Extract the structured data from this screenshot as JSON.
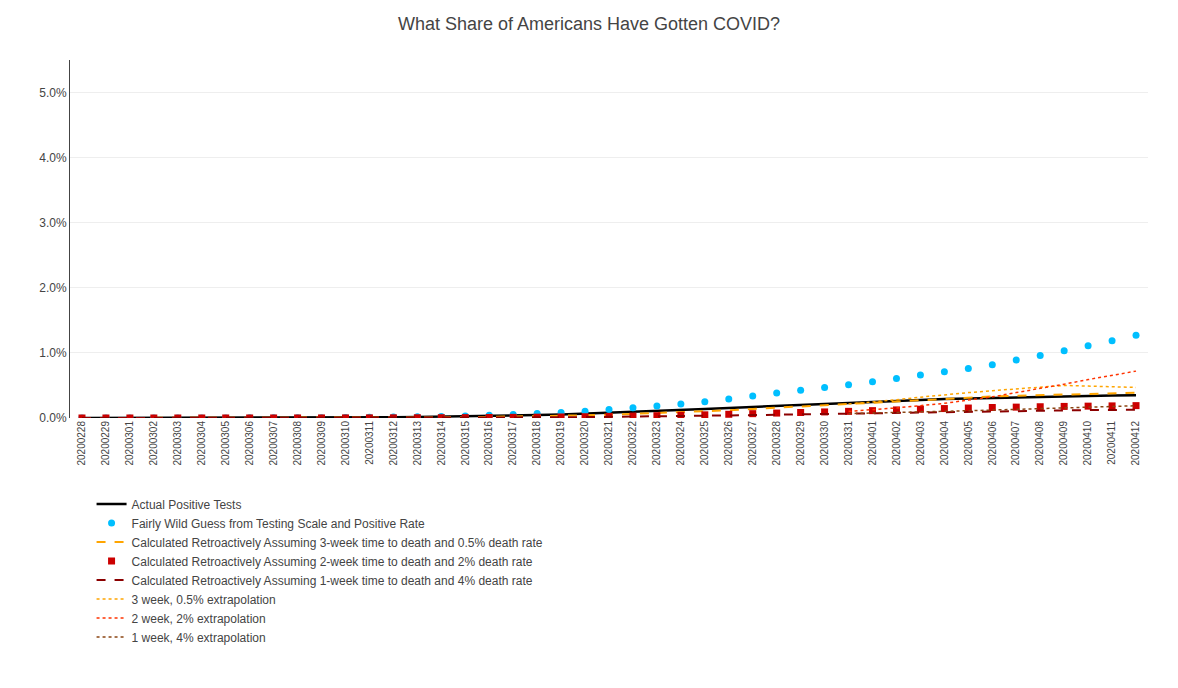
{
  "chart_data": {
    "type": "line",
    "title": "What Share of Americans Have Gotten COVID?",
    "categories": [
      "20200228",
      "20200229",
      "20200301",
      "20200302",
      "20200303",
      "20200304",
      "20200305",
      "20200306",
      "20200307",
      "20200308",
      "20200309",
      "20200310",
      "20200311",
      "20200312",
      "20200313",
      "20200314",
      "20200315",
      "20200316",
      "20200317",
      "20200318",
      "20200319",
      "20200320",
      "20200321",
      "20200322",
      "20200323",
      "20200324",
      "20200325",
      "20200326",
      "20200327",
      "20200328",
      "20200329",
      "20200330",
      "20200331",
      "20200401",
      "20200402",
      "20200403",
      "20200404",
      "20200405",
      "20200406",
      "20200407",
      "20200408",
      "20200409",
      "20200410",
      "20200411",
      "20200412"
    ],
    "series": [
      {
        "name": "Actual Positive Tests",
        "color": "#000000",
        "line_style": "solid",
        "marker": "none",
        "values": [
          2e-06,
          3e-06,
          5e-06,
          7e-06,
          9e-06,
          1.1e-05,
          1.5e-05,
          2.1e-05,
          2.8e-05,
          3.7e-05,
          4.7e-05,
          6.3e-05,
          8.3e-05,
          0.000117,
          0.00016,
          0.000198,
          0.000244,
          0.000311,
          0.000385,
          0.000467,
          0.000555,
          0.000673,
          0.0008,
          0.000958,
          0.00109,
          0.00122,
          0.001365,
          0.00154,
          0.00172,
          0.001895,
          0.00203,
          0.00216,
          0.00231,
          0.00248,
          0.00265,
          0.0028,
          0.00293,
          0.00301,
          0.0031,
          0.00317,
          0.00326,
          0.00334,
          0.00339,
          0.00344,
          0.00349
        ]
      },
      {
        "name": "Fairly Wild Guess from Testing Scale and Positive Rate",
        "color": "#00BFFF",
        "line_style": "none",
        "marker": "circle",
        "values": [
          2e-06,
          3e-06,
          5e-06,
          7e-06,
          1e-05,
          1.3e-05,
          1.8e-05,
          2.5e-05,
          3.3e-05,
          4.3e-05,
          5.6e-05,
          7.5e-05,
          0.0001,
          0.00014,
          0.00019,
          0.00024,
          0.00031,
          0.00041,
          0.00053,
          0.00068,
          0.00084,
          0.00105,
          0.00129,
          0.00158,
          0.00186,
          0.00216,
          0.0025,
          0.0029,
          0.00338,
          0.00385,
          0.00425,
          0.00468,
          0.0051,
          0.00555,
          0.00605,
          0.0066,
          0.0071,
          0.0076,
          0.0082,
          0.0089,
          0.0096,
          0.01035,
          0.0111,
          0.01185,
          0.0127
        ]
      },
      {
        "name": "Calculated Retroactively Assuming 3-week time to death and 0.5% death rate",
        "color": "#FFA500",
        "line_style": "dashed",
        "marker": "none",
        "values": [
          1e-06,
          1e-06,
          2e-06,
          3e-06,
          4e-06,
          5e-06,
          7e-06,
          1e-05,
          1.3e-05,
          1.7e-05,
          2.2e-05,
          3e-05,
          3.9e-05,
          5.5e-05,
          7.5e-05,
          9.5e-05,
          0.00012,
          0.00016,
          0.00021,
          0.000268,
          0.00033,
          0.00041,
          0.000505,
          0.00062,
          0.00074,
          0.00087,
          0.00101,
          0.00119,
          0.00139,
          0.00159,
          0.00177,
          0.00195,
          0.00214,
          0.00235,
          0.00258,
          0.0028,
          0.003,
          0.00315,
          0.0033,
          0.00342,
          0.00353,
          0.00364,
          0.00372,
          0.0038,
          0.00387
        ]
      },
      {
        "name": "Calculated Retroactively Assuming 2-week time to death and 2% death rate",
        "color": "#CC0000",
        "line_style": "none",
        "marker": "square",
        "values": [
          1e-06,
          1e-06,
          1e-06,
          2e-06,
          2e-06,
          3e-06,
          4e-06,
          5e-06,
          7e-06,
          9e-06,
          1.1e-05,
          1.5e-05,
          2e-05,
          2.8e-05,
          3.8e-05,
          4.7e-05,
          5.9e-05,
          7.7e-05,
          0.0001,
          0.000128,
          0.000158,
          0.000198,
          0.000243,
          0.0003,
          0.000357,
          0.000418,
          0.000487,
          0.000572,
          0.000665,
          0.000758,
          0.000843,
          0.000932,
          0.00102,
          0.00113,
          0.00124,
          0.00135,
          0.00145,
          0.00153,
          0.00161,
          0.00167,
          0.00173,
          0.00178,
          0.00182,
          0.00186,
          0.0019
        ]
      },
      {
        "name": "Calculated Retroactively Assuming 1-week time to death and 4% death rate",
        "color": "#8B0000",
        "line_style": "dashed",
        "marker": "none",
        "values": [
          1e-06,
          1e-06,
          1e-06,
          1e-06,
          2e-06,
          2e-06,
          3e-06,
          4e-06,
          5e-06,
          6e-06,
          8e-06,
          1e-05,
          1.4e-05,
          1.9e-05,
          2.6e-05,
          3.2e-05,
          4e-05,
          5.2e-05,
          6.7e-05,
          8.6e-05,
          0.000106,
          0.000133,
          0.000163,
          0.0002,
          0.000238,
          0.000279,
          0.000325,
          0.000381,
          0.000444,
          0.000505,
          0.000562,
          0.000621,
          0.00068,
          0.000753,
          0.000827,
          0.0009,
          0.000967,
          0.00102,
          0.001073,
          0.001113,
          0.001153,
          0.001187,
          0.001213,
          0.00124,
          0.001267
        ]
      },
      {
        "name": "3 week, 0.5% extrapolation",
        "color": "#FFA500",
        "line_style": "dotted",
        "marker": "none",
        "values": [
          null,
          null,
          null,
          null,
          null,
          null,
          null,
          null,
          null,
          null,
          null,
          null,
          null,
          null,
          null,
          null,
          null,
          null,
          null,
          null,
          null,
          null,
          null,
          null,
          null,
          null,
          null,
          null,
          null,
          null,
          null,
          null,
          0.00214,
          0.00245,
          0.00281,
          0.0032,
          0.0036,
          0.0039,
          0.0042,
          0.0045,
          0.0048,
          0.005,
          0.0049,
          0.0048,
          0.0047
        ]
      },
      {
        "name": "2 week, 2% extrapolation",
        "color": "#FF3300",
        "line_style": "dotted",
        "marker": "none",
        "values": [
          null,
          null,
          null,
          null,
          null,
          null,
          null,
          null,
          null,
          null,
          null,
          null,
          null,
          null,
          null,
          null,
          null,
          null,
          null,
          null,
          null,
          null,
          null,
          null,
          null,
          null,
          null,
          null,
          null,
          null,
          null,
          null,
          0.00102,
          0.00125,
          0.00155,
          0.0019,
          0.00225,
          0.00275,
          0.00325,
          0.0039,
          0.0045,
          0.0052,
          0.0059,
          0.0066,
          0.0072
        ]
      },
      {
        "name": "1 week, 4% extrapolation",
        "color": "#8B4513",
        "line_style": "dotted",
        "marker": "none",
        "values": [
          null,
          null,
          null,
          null,
          null,
          null,
          null,
          null,
          null,
          null,
          null,
          null,
          null,
          null,
          null,
          null,
          null,
          null,
          null,
          null,
          null,
          null,
          null,
          null,
          null,
          null,
          null,
          null,
          null,
          null,
          null,
          null,
          0.00068,
          0.00075,
          0.00083,
          0.00092,
          0.00102,
          0.00112,
          0.00122,
          0.00132,
          0.00142,
          0.00153,
          0.00164,
          0.00176,
          0.00188
        ]
      }
    ],
    "ylim": [
      0.0,
      0.055
    ],
    "yticks": [
      {
        "value": 0.0,
        "label": "0.0%"
      },
      {
        "value": 0.01,
        "label": "1.0%"
      },
      {
        "value": 0.02,
        "label": "2.0%"
      },
      {
        "value": 0.03,
        "label": "3.0%"
      },
      {
        "value": 0.04,
        "label": "4.0%"
      },
      {
        "value": 0.05,
        "label": "5.0%"
      }
    ],
    "grid": true,
    "legend": "bottom"
  }
}
